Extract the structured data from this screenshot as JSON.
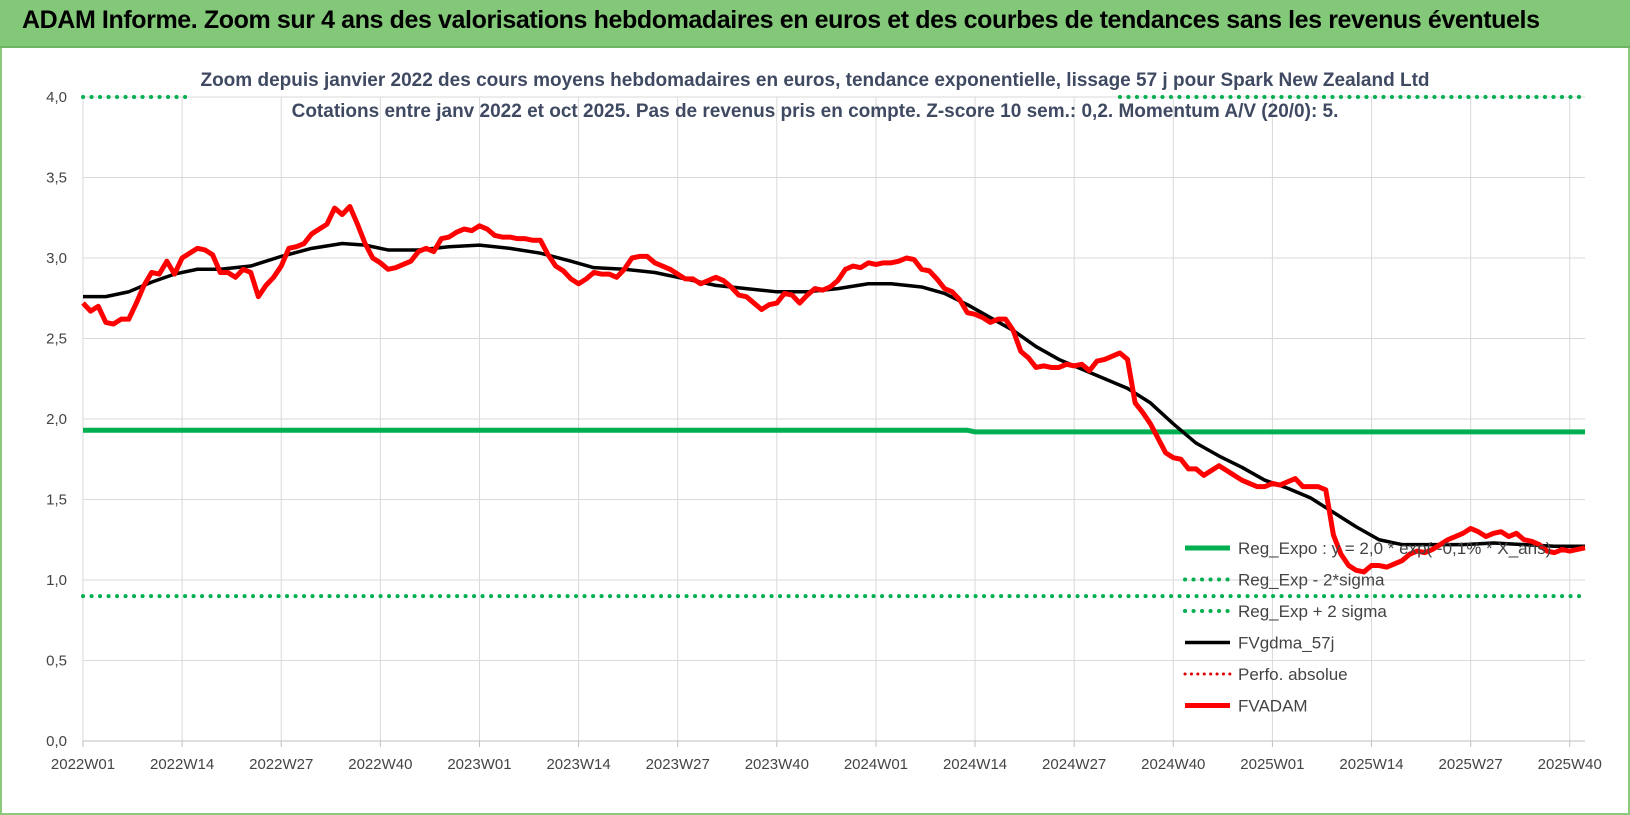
{
  "header": {
    "title": "ADAM Informe. Zoom sur 4 ans des valorisations hebdomadaires en euros et des courbes de tendances sans les revenus éventuels"
  },
  "chart_data": {
    "type": "line",
    "title": "Zoom depuis janvier 2022 des cours moyens hebdomadaires en euros, tendance exponentielle, lissage 57 j pour Spark New Zealand Ltd",
    "subtitle": "Cotations entre janv 2022 et oct 2025. Pas de revenus pris en compte. Z-score 10 sem.: 0,2. Momentum A/V (20/0): 5.",
    "ylim": [
      0,
      4
    ],
    "y_ticks": [
      "0,0",
      "0,5",
      "1,0",
      "1,5",
      "2,0",
      "2,5",
      "3,0",
      "3,5",
      "4,0"
    ],
    "x_count": 198,
    "x_ticks": [
      {
        "index": 0,
        "label": "2022W01"
      },
      {
        "index": 13,
        "label": "2022W14"
      },
      {
        "index": 26,
        "label": "2022W27"
      },
      {
        "index": 39,
        "label": "2022W40"
      },
      {
        "index": 52,
        "label": "2023W01"
      },
      {
        "index": 65,
        "label": "2023W14"
      },
      {
        "index": 78,
        "label": "2023W27"
      },
      {
        "index": 91,
        "label": "2023W40"
      },
      {
        "index": 104,
        "label": "2024W01"
      },
      {
        "index": 117,
        "label": "2024W14"
      },
      {
        "index": 130,
        "label": "2024W27"
      },
      {
        "index": 143,
        "label": "2024W40"
      },
      {
        "index": 156,
        "label": "2025W01"
      },
      {
        "index": 169,
        "label": "2025W14"
      },
      {
        "index": 182,
        "label": "2025W27"
      },
      {
        "index": 195,
        "label": "2025W40"
      }
    ],
    "series": [
      {
        "name": "Reg_Expo : y = 2,0 * exp( -0,1% * X_ans)",
        "color": "#00b050",
        "style": "solid",
        "width": 5,
        "points": [
          [
            0,
            1.93
          ],
          [
            116,
            1.93
          ],
          [
            117,
            1.92
          ],
          [
            197,
            1.92
          ]
        ]
      },
      {
        "name": "Reg_Exp - 2*sigma",
        "color": "#00b050",
        "style": "dotted",
        "width": 4,
        "points": [
          [
            0,
            0.9
          ],
          [
            197,
            0.9
          ]
        ]
      },
      {
        "name": "Reg_Exp + 2 sigma",
        "color": "#00b050",
        "style": "dotted",
        "width": 4,
        "points": [
          [
            0,
            4.0
          ],
          [
            197,
            4.0
          ]
        ]
      },
      {
        "name": "FVgdma_57j",
        "color": "#000000",
        "style": "solid",
        "width": 3.5,
        "points": [
          [
            0,
            2.76
          ],
          [
            3,
            2.76
          ],
          [
            6,
            2.79
          ],
          [
            9,
            2.85
          ],
          [
            12,
            2.9
          ],
          [
            15,
            2.93
          ],
          [
            18,
            2.93
          ],
          [
            22,
            2.95
          ],
          [
            26,
            3.01
          ],
          [
            30,
            3.06
          ],
          [
            34,
            3.09
          ],
          [
            37,
            3.08
          ],
          [
            40,
            3.05
          ],
          [
            44,
            3.05
          ],
          [
            48,
            3.07
          ],
          [
            52,
            3.08
          ],
          [
            56,
            3.06
          ],
          [
            60,
            3.03
          ],
          [
            64,
            2.98
          ],
          [
            67,
            2.94
          ],
          [
            71,
            2.93
          ],
          [
            75,
            2.91
          ],
          [
            79,
            2.87
          ],
          [
            83,
            2.83
          ],
          [
            87,
            2.81
          ],
          [
            91,
            2.79
          ],
          [
            95,
            2.79
          ],
          [
            99,
            2.81
          ],
          [
            103,
            2.84
          ],
          [
            106,
            2.84
          ],
          [
            110,
            2.82
          ],
          [
            113,
            2.78
          ],
          [
            116,
            2.71
          ],
          [
            119,
            2.63
          ],
          [
            122,
            2.55
          ],
          [
            125,
            2.45
          ],
          [
            128,
            2.37
          ],
          [
            131,
            2.31
          ],
          [
            134,
            2.25
          ],
          [
            137,
            2.19
          ],
          [
            140,
            2.1
          ],
          [
            143,
            1.97
          ],
          [
            146,
            1.85
          ],
          [
            149,
            1.77
          ],
          [
            152,
            1.7
          ],
          [
            155,
            1.62
          ],
          [
            158,
            1.57
          ],
          [
            161,
            1.51
          ],
          [
            164,
            1.42
          ],
          [
            167,
            1.33
          ],
          [
            170,
            1.25
          ],
          [
            173,
            1.22
          ],
          [
            177,
            1.22
          ],
          [
            181,
            1.22
          ],
          [
            185,
            1.23
          ],
          [
            189,
            1.22
          ],
          [
            193,
            1.21
          ],
          [
            197,
            1.21
          ]
        ]
      },
      {
        "name": "Perfo. absolue",
        "color": "#e00000",
        "style": "dotted",
        "width": 3,
        "points": []
      },
      {
        "name": "FVADAM",
        "color": "#ff0000",
        "style": "solid",
        "width": 5,
        "points": [
          [
            0,
            2.72
          ],
          [
            1,
            2.67
          ],
          [
            2,
            2.7
          ],
          [
            3,
            2.6
          ],
          [
            4,
            2.59
          ],
          [
            5,
            2.62
          ],
          [
            6,
            2.62
          ],
          [
            7,
            2.72
          ],
          [
            8,
            2.83
          ],
          [
            9,
            2.91
          ],
          [
            10,
            2.9
          ],
          [
            11,
            2.98
          ],
          [
            12,
            2.9
          ],
          [
            13,
            3.0
          ],
          [
            14,
            3.03
          ],
          [
            15,
            3.06
          ],
          [
            16,
            3.05
          ],
          [
            17,
            3.02
          ],
          [
            18,
            2.91
          ],
          [
            19,
            2.91
          ],
          [
            20,
            2.88
          ],
          [
            21,
            2.93
          ],
          [
            22,
            2.91
          ],
          [
            23,
            2.76
          ],
          [
            24,
            2.83
          ],
          [
            25,
            2.88
          ],
          [
            26,
            2.95
          ],
          [
            27,
            3.06
          ],
          [
            28,
            3.07
          ],
          [
            29,
            3.09
          ],
          [
            30,
            3.15
          ],
          [
            31,
            3.18
          ],
          [
            32,
            3.21
          ],
          [
            33,
            3.31
          ],
          [
            34,
            3.27
          ],
          [
            35,
            3.32
          ],
          [
            36,
            3.21
          ],
          [
            37,
            3.09
          ],
          [
            38,
            3.0
          ],
          [
            39,
            2.97
          ],
          [
            40,
            2.93
          ],
          [
            41,
            2.94
          ],
          [
            42,
            2.96
          ],
          [
            43,
            2.98
          ],
          [
            44,
            3.04
          ],
          [
            45,
            3.06
          ],
          [
            46,
            3.04
          ],
          [
            47,
            3.12
          ],
          [
            48,
            3.13
          ],
          [
            49,
            3.16
          ],
          [
            50,
            3.18
          ],
          [
            51,
            3.17
          ],
          [
            52,
            3.2
          ],
          [
            53,
            3.18
          ],
          [
            54,
            3.14
          ],
          [
            55,
            3.13
          ],
          [
            56,
            3.13
          ],
          [
            57,
            3.12
          ],
          [
            58,
            3.12
          ],
          [
            59,
            3.11
          ],
          [
            60,
            3.11
          ],
          [
            61,
            3.02
          ],
          [
            62,
            2.95
          ],
          [
            63,
            2.92
          ],
          [
            64,
            2.87
          ],
          [
            65,
            2.84
          ],
          [
            66,
            2.87
          ],
          [
            67,
            2.91
          ],
          [
            68,
            2.9
          ],
          [
            69,
            2.9
          ],
          [
            70,
            2.88
          ],
          [
            71,
            2.93
          ],
          [
            72,
            3.0
          ],
          [
            73,
            3.01
          ],
          [
            74,
            3.01
          ],
          [
            75,
            2.97
          ],
          [
            76,
            2.95
          ],
          [
            77,
            2.93
          ],
          [
            78,
            2.9
          ],
          [
            79,
            2.87
          ],
          [
            80,
            2.87
          ],
          [
            81,
            2.84
          ],
          [
            82,
            2.86
          ],
          [
            83,
            2.88
          ],
          [
            84,
            2.86
          ],
          [
            85,
            2.82
          ],
          [
            86,
            2.77
          ],
          [
            87,
            2.76
          ],
          [
            88,
            2.72
          ],
          [
            89,
            2.68
          ],
          [
            90,
            2.71
          ],
          [
            91,
            2.72
          ],
          [
            92,
            2.78
          ],
          [
            93,
            2.77
          ],
          [
            94,
            2.72
          ],
          [
            95,
            2.77
          ],
          [
            96,
            2.81
          ],
          [
            97,
            2.8
          ],
          [
            98,
            2.82
          ],
          [
            99,
            2.86
          ],
          [
            100,
            2.93
          ],
          [
            101,
            2.95
          ],
          [
            102,
            2.94
          ],
          [
            103,
            2.97
          ],
          [
            104,
            2.96
          ],
          [
            105,
            2.97
          ],
          [
            106,
            2.97
          ],
          [
            107,
            2.98
          ],
          [
            108,
            3.0
          ],
          [
            109,
            2.99
          ],
          [
            110,
            2.93
          ],
          [
            111,
            2.92
          ],
          [
            112,
            2.87
          ],
          [
            113,
            2.81
          ],
          [
            114,
            2.79
          ],
          [
            115,
            2.74
          ],
          [
            116,
            2.66
          ],
          [
            117,
            2.65
          ],
          [
            118,
            2.63
          ],
          [
            119,
            2.6
          ],
          [
            120,
            2.62
          ],
          [
            121,
            2.62
          ],
          [
            122,
            2.55
          ],
          [
            123,
            2.42
          ],
          [
            124,
            2.38
          ],
          [
            125,
            2.32
          ],
          [
            126,
            2.33
          ],
          [
            127,
            2.32
          ],
          [
            128,
            2.32
          ],
          [
            129,
            2.34
          ],
          [
            130,
            2.33
          ],
          [
            131,
            2.34
          ],
          [
            132,
            2.3
          ],
          [
            133,
            2.36
          ],
          [
            134,
            2.37
          ],
          [
            135,
            2.39
          ],
          [
            136,
            2.41
          ],
          [
            137,
            2.37
          ],
          [
            138,
            2.1
          ],
          [
            139,
            2.04
          ],
          [
            140,
            1.97
          ],
          [
            141,
            1.88
          ],
          [
            142,
            1.79
          ],
          [
            143,
            1.76
          ],
          [
            144,
            1.75
          ],
          [
            145,
            1.69
          ],
          [
            146,
            1.69
          ],
          [
            147,
            1.65
          ],
          [
            148,
            1.68
          ],
          [
            149,
            1.71
          ],
          [
            150,
            1.68
          ],
          [
            151,
            1.65
          ],
          [
            152,
            1.62
          ],
          [
            153,
            1.6
          ],
          [
            154,
            1.58
          ],
          [
            155,
            1.58
          ],
          [
            156,
            1.6
          ],
          [
            157,
            1.59
          ],
          [
            158,
            1.61
          ],
          [
            159,
            1.63
          ],
          [
            160,
            1.58
          ],
          [
            161,
            1.58
          ],
          [
            162,
            1.58
          ],
          [
            163,
            1.56
          ],
          [
            164,
            1.28
          ],
          [
            165,
            1.16
          ],
          [
            166,
            1.09
          ],
          [
            167,
            1.06
          ],
          [
            168,
            1.05
          ],
          [
            169,
            1.09
          ],
          [
            170,
            1.09
          ],
          [
            171,
            1.08
          ],
          [
            172,
            1.1
          ],
          [
            173,
            1.12
          ],
          [
            174,
            1.16
          ],
          [
            175,
            1.18
          ],
          [
            176,
            1.17
          ],
          [
            177,
            1.19
          ],
          [
            178,
            1.22
          ],
          [
            179,
            1.25
          ],
          [
            180,
            1.27
          ],
          [
            181,
            1.29
          ],
          [
            182,
            1.32
          ],
          [
            183,
            1.3
          ],
          [
            184,
            1.27
          ],
          [
            185,
            1.29
          ],
          [
            186,
            1.3
          ],
          [
            187,
            1.27
          ],
          [
            188,
            1.29
          ],
          [
            189,
            1.25
          ],
          [
            190,
            1.24
          ],
          [
            191,
            1.22
          ],
          [
            192,
            1.18
          ],
          [
            193,
            1.17
          ],
          [
            194,
            1.19
          ],
          [
            195,
            1.18
          ],
          [
            196,
            1.19
          ],
          [
            197,
            1.2
          ]
        ]
      }
    ],
    "legend_position": "bottom-right"
  }
}
